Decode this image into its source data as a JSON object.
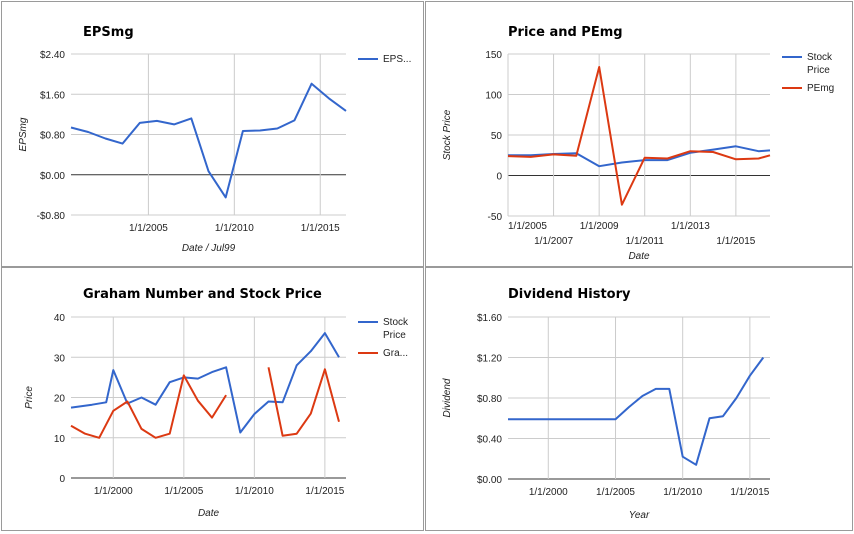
{
  "colors": {
    "blue": "#3366cc",
    "red": "#dc3912"
  },
  "chart_data": [
    {
      "type": "line",
      "title": "EPSmg",
      "xlabel": "Date / Jul99",
      "ylabel": "EPSmg",
      "x_type": "date",
      "xlim": [
        "2000-07-01",
        "2016-07-01"
      ],
      "ylim": [
        -0.8,
        2.4
      ],
      "x_ticks": [
        {
          "value": "2005-01-01",
          "label": "1/1/2005"
        },
        {
          "value": "2010-01-01",
          "label": "1/1/2010"
        },
        {
          "value": "2015-01-01",
          "label": "1/1/2015"
        }
      ],
      "y_ticks": [
        {
          "value": -0.8,
          "label": "-$0.80"
        },
        {
          "value": 0,
          "label": "$0.00"
        },
        {
          "value": 0.8,
          "label": "$0.80"
        },
        {
          "value": 1.6,
          "label": "$1.60"
        },
        {
          "value": 2.4,
          "label": "$2.40"
        }
      ],
      "legend_position": "right",
      "series": [
        {
          "name": "EPS...",
          "color": "#3366cc",
          "x": [
            "2000-07-01",
            "2001-07-01",
            "2002-07-01",
            "2003-07-01",
            "2004-07-01",
            "2005-07-01",
            "2006-07-01",
            "2007-07-01",
            "2008-07-01",
            "2009-07-01",
            "2010-07-01",
            "2011-07-01",
            "2012-07-01",
            "2013-07-01",
            "2014-07-01",
            "2015-07-01",
            "2016-07-01"
          ],
          "y": [
            0.94,
            0.85,
            0.72,
            0.62,
            1.03,
            1.07,
            1.0,
            1.12,
            0.07,
            -0.45,
            0.87,
            0.88,
            0.92,
            1.08,
            1.81,
            1.52,
            1.27
          ]
        }
      ]
    },
    {
      "type": "line",
      "title": "Price and PEmg",
      "xlabel": "Date",
      "ylabel": "Stock Price",
      "x_type": "date",
      "xlim": [
        "2005-01-01",
        "2016-07-01"
      ],
      "ylim": [
        -50,
        150
      ],
      "x_ticks": [
        {
          "value": "2005-01-01",
          "label": "1/1/2005"
        },
        {
          "value": "2007-01-01",
          "label": "1/1/2007"
        },
        {
          "value": "2009-01-01",
          "label": "1/1/2009"
        },
        {
          "value": "2011-01-01",
          "label": "1/1/2011"
        },
        {
          "value": "2013-01-01",
          "label": "1/1/2013"
        },
        {
          "value": "2015-01-01",
          "label": "1/1/2015"
        }
      ],
      "y_ticks": [
        {
          "value": -50,
          "label": "-50"
        },
        {
          "value": 0,
          "label": "0"
        },
        {
          "value": 50,
          "label": "50"
        },
        {
          "value": 100,
          "label": "100"
        },
        {
          "value": 150,
          "label": "150"
        }
      ],
      "legend_position": "right",
      "series": [
        {
          "name": "Stock Price",
          "color": "#3366cc",
          "x": [
            "2005-01-01",
            "2006-01-01",
            "2007-01-01",
            "2008-01-01",
            "2009-01-01",
            "2010-01-01",
            "2011-01-01",
            "2012-01-01",
            "2013-01-01",
            "2014-01-01",
            "2015-01-01",
            "2016-01-01",
            "2016-07-01"
          ],
          "y": [
            25,
            25,
            26.5,
            27.5,
            11.5,
            16,
            19,
            19,
            28,
            32,
            36,
            30,
            31
          ]
        },
        {
          "name": "PEmg",
          "color": "#dc3912",
          "x": [
            "2005-01-01",
            "2006-01-01",
            "2007-01-01",
            "2008-01-01",
            "2009-01-01",
            "2010-01-01",
            "2011-01-01",
            "2012-01-01",
            "2013-01-01",
            "2014-01-01",
            "2015-01-01",
            "2016-01-01",
            "2016-07-01"
          ],
          "y": [
            24,
            23,
            26,
            24.5,
            134,
            -36,
            22,
            21,
            30,
            29,
            20,
            21,
            25
          ]
        }
      ]
    },
    {
      "type": "line",
      "title": "Graham Number and Stock Price",
      "xlabel": "Date",
      "ylabel": "Price",
      "x_type": "date",
      "xlim": [
        "1997-01-01",
        "2016-07-01"
      ],
      "ylim": [
        0,
        40
      ],
      "x_ticks": [
        {
          "value": "2000-01-01",
          "label": "1/1/2000"
        },
        {
          "value": "2005-01-01",
          "label": "1/1/2005"
        },
        {
          "value": "2010-01-01",
          "label": "1/1/2010"
        },
        {
          "value": "2015-01-01",
          "label": "1/1/2015"
        }
      ],
      "y_ticks": [
        {
          "value": 0,
          "label": "0"
        },
        {
          "value": 10,
          "label": "10"
        },
        {
          "value": 20,
          "label": "20"
        },
        {
          "value": 30,
          "label": "30"
        },
        {
          "value": 40,
          "label": "40"
        }
      ],
      "legend_position": "right",
      "series": [
        {
          "name": "Stock Price",
          "color": "#3366cc",
          "x": [
            "1997-01-01",
            "1998-07-01",
            "1999-07-01",
            "2000-01-01",
            "2001-01-01",
            "2002-01-01",
            "2003-01-01",
            "2004-01-01",
            "2005-01-01",
            "2006-01-01",
            "2007-01-01",
            "2008-01-01",
            "2009-01-01",
            "2010-01-01",
            "2011-01-01",
            "2012-01-01",
            "2013-01-01",
            "2014-01-01",
            "2015-01-01",
            "2016-01-01"
          ],
          "y": [
            17.5,
            18.2,
            18.8,
            26.8,
            18.5,
            20,
            18.2,
            23.8,
            25,
            24.7,
            26.3,
            27.5,
            11.3,
            15.9,
            19.0,
            18.8,
            28,
            31.5,
            36,
            30
          ]
        },
        {
          "name": "Gra...",
          "color": "#dc3912",
          "x": [
            "1997-01-01",
            "1998-01-01",
            "1999-01-01",
            "2000-01-01",
            "2001-01-01",
            "2002-01-01",
            "2003-01-01",
            "2004-01-01",
            "2005-01-01",
            "2006-01-01",
            "2007-01-01",
            "2008-01-01"
          ],
          "y": [
            13,
            11,
            10,
            16.7,
            19,
            12.2,
            10,
            11,
            25.5,
            19.2,
            15,
            20.6
          ]
        },
        {
          "name": "Gra...",
          "color": "#dc3912",
          "show_in_legend": false,
          "x": [
            "2011-01-01",
            "2012-01-01",
            "2013-01-01",
            "2014-01-01",
            "2015-01-01",
            "2016-01-01"
          ],
          "y": [
            27.5,
            10.5,
            11,
            16,
            27,
            14
          ]
        }
      ]
    },
    {
      "type": "line",
      "title": "Dividend History",
      "xlabel": "Year",
      "ylabel": "Dividend",
      "x_type": "date",
      "xlim": [
        "1997-01-01",
        "2016-07-01"
      ],
      "ylim": [
        0,
        1.6
      ],
      "x_ticks": [
        {
          "value": "2000-01-01",
          "label": "1/1/2000"
        },
        {
          "value": "2005-01-01",
          "label": "1/1/2005"
        },
        {
          "value": "2010-01-01",
          "label": "1/1/2010"
        },
        {
          "value": "2015-01-01",
          "label": "1/1/2015"
        }
      ],
      "y_ticks": [
        {
          "value": 0,
          "label": "$0.00"
        },
        {
          "value": 0.4,
          "label": "$0.40"
        },
        {
          "value": 0.8,
          "label": "$0.80"
        },
        {
          "value": 1.2,
          "label": "$1.20"
        },
        {
          "value": 1.6,
          "label": "$1.60"
        }
      ],
      "legend_position": "none",
      "series": [
        {
          "color": "#3366cc",
          "x": [
            "1997-01-01",
            "1998-01-01",
            "1999-01-01",
            "2000-01-01",
            "2001-01-01",
            "2002-01-01",
            "2003-01-01",
            "2004-01-01",
            "2005-01-01",
            "2006-01-01",
            "2007-01-01",
            "2008-01-01",
            "2009-01-01",
            "2010-01-01",
            "2011-01-01",
            "2012-01-01",
            "2013-01-01",
            "2014-01-01",
            "2015-01-01",
            "2016-01-01"
          ],
          "y": [
            0.59,
            0.59,
            0.59,
            0.59,
            0.59,
            0.59,
            0.59,
            0.59,
            0.59,
            0.71,
            0.82,
            0.89,
            0.89,
            0.22,
            0.14,
            0.6,
            0.62,
            0.8,
            1.02,
            1.2
          ]
        }
      ]
    }
  ]
}
